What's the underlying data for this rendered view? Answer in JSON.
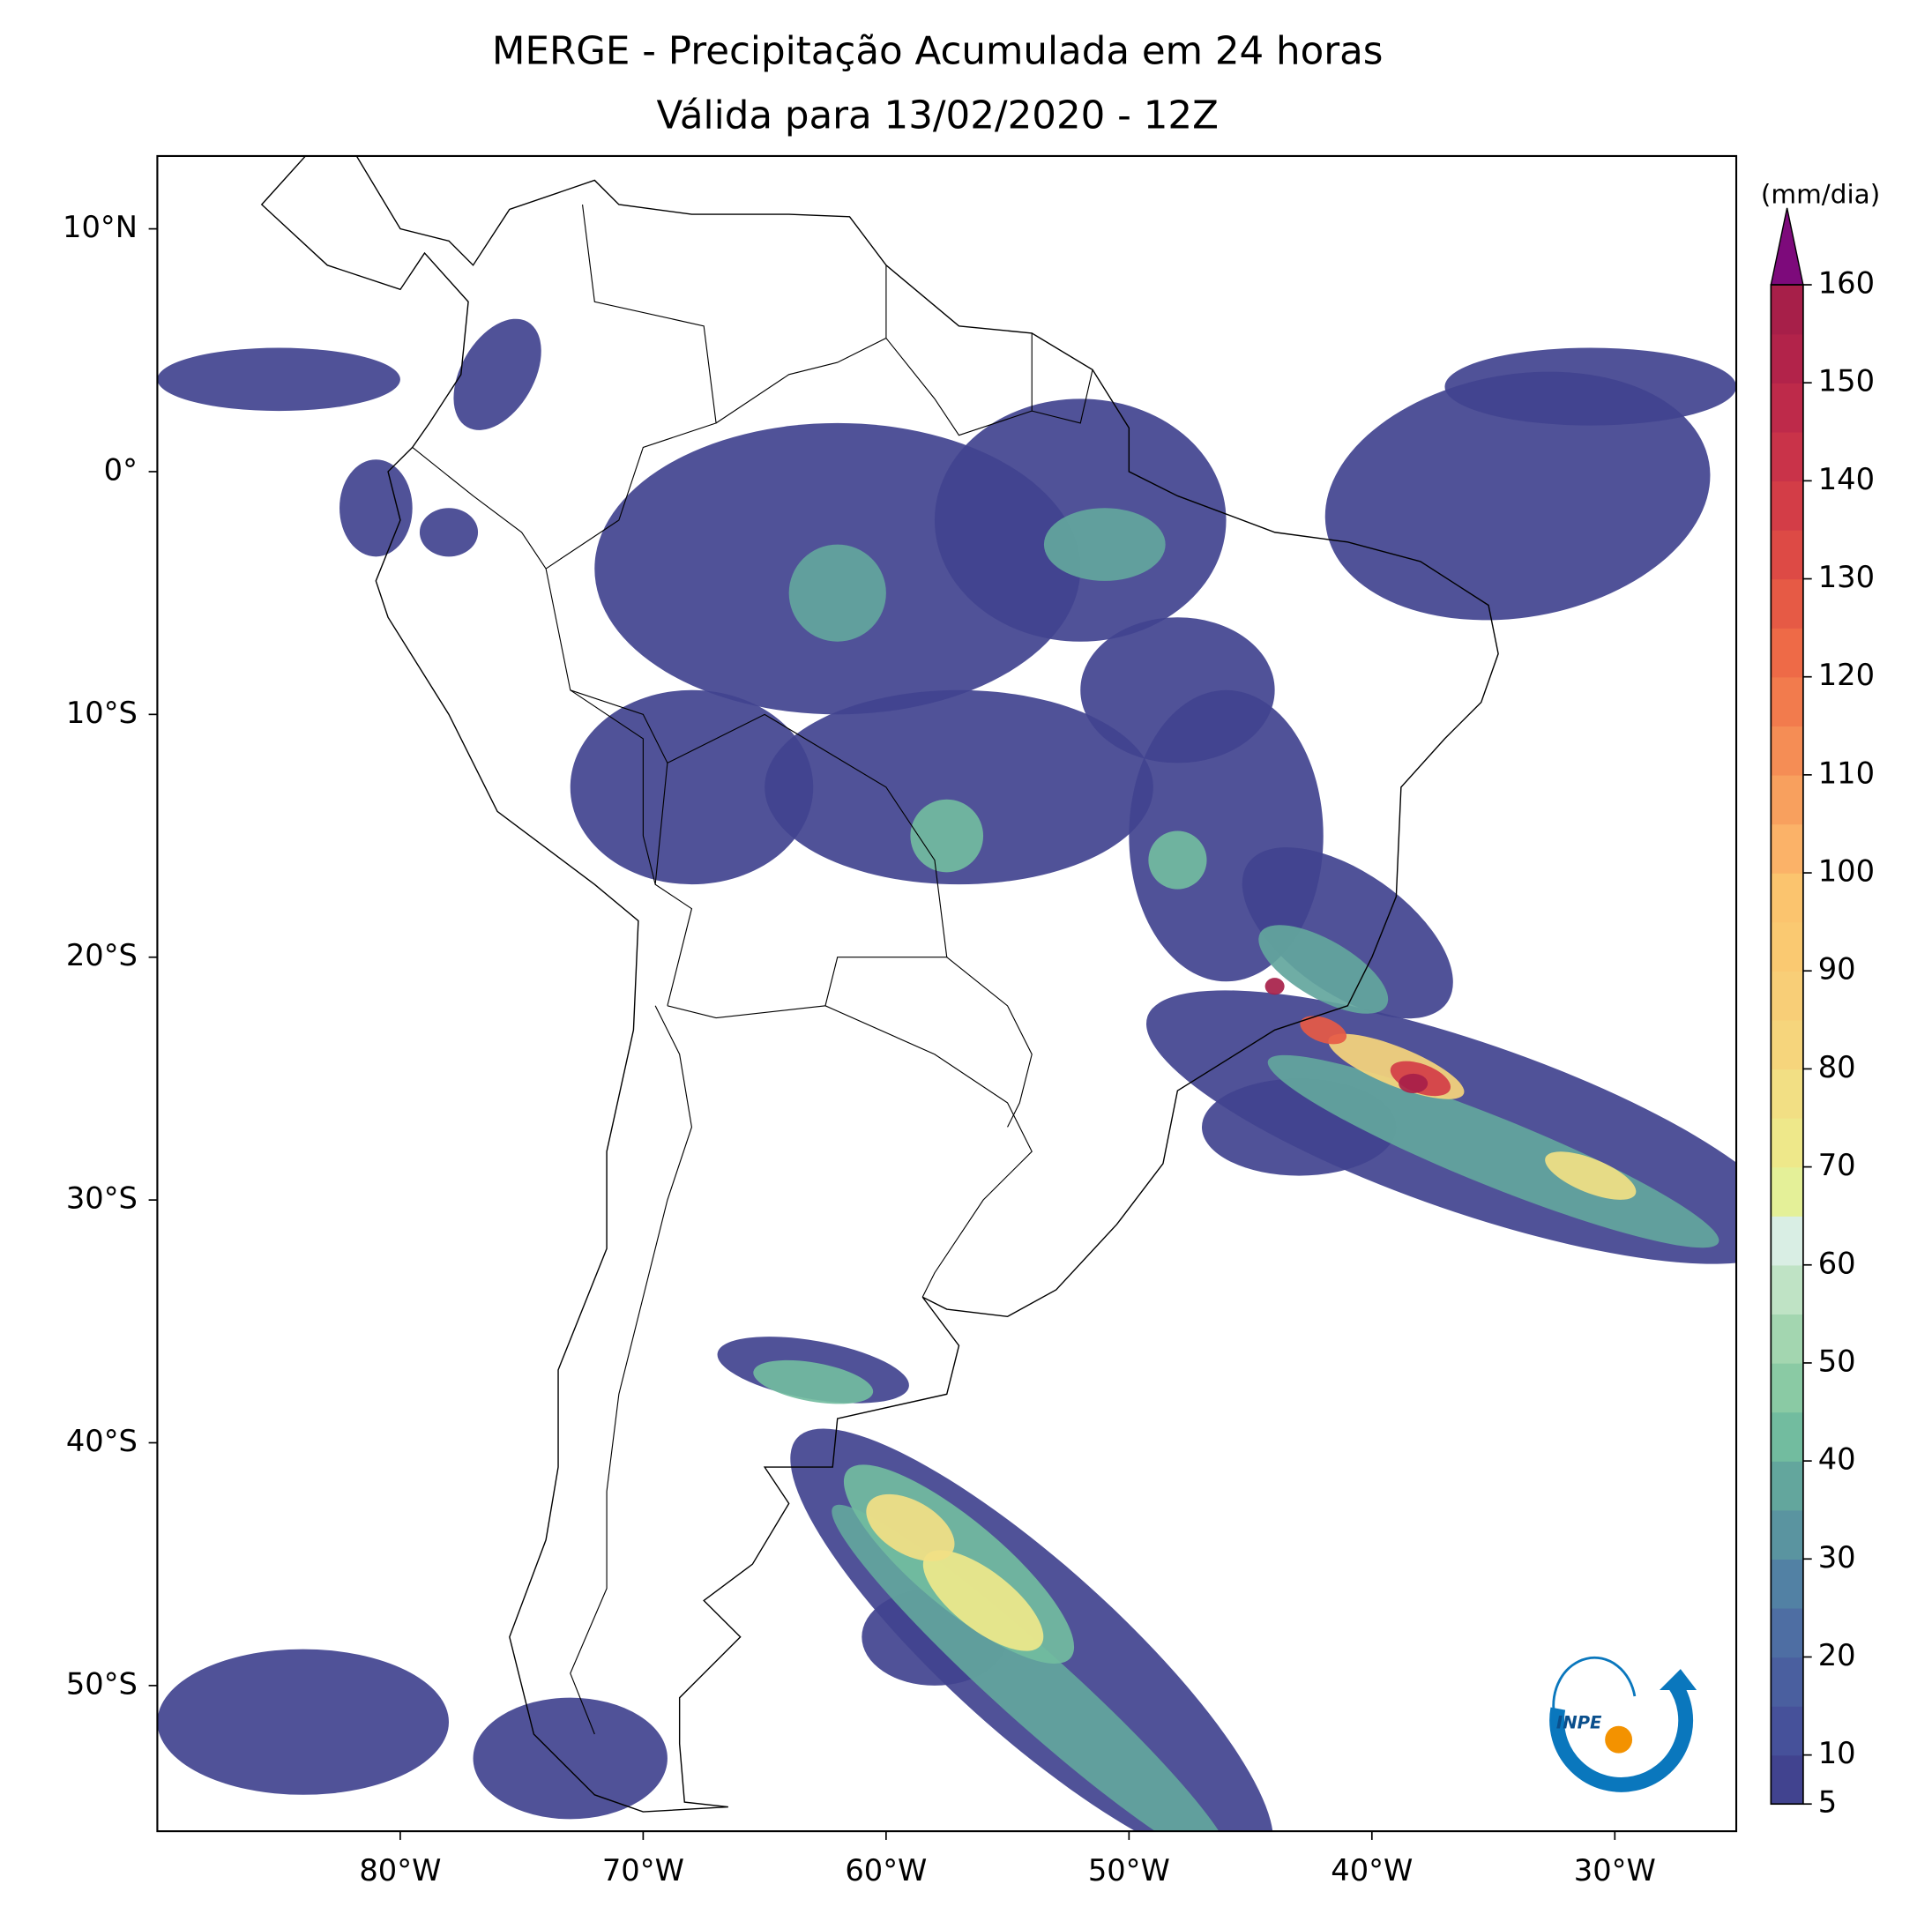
{
  "title": "MERGE - Precipitação Acumulada em 24 horas",
  "subtitle": "Válida para 13/02/2020 - 12Z",
  "map": {
    "xlim": [
      -90,
      -25
    ],
    "ylim": [
      -56,
      13
    ],
    "xticks": [
      {
        "value": -80,
        "label": "80°W"
      },
      {
        "value": -70,
        "label": "70°W"
      },
      {
        "value": -60,
        "label": "60°W"
      },
      {
        "value": -50,
        "label": "50°W"
      },
      {
        "value": -40,
        "label": "40°W"
      },
      {
        "value": -30,
        "label": "30°W"
      }
    ],
    "yticks": [
      {
        "value": 10,
        "label": "10°N"
      },
      {
        "value": 0,
        "label": "0°"
      },
      {
        "value": -10,
        "label": "10°S"
      },
      {
        "value": -20,
        "label": "20°S"
      },
      {
        "value": -30,
        "label": "30°S"
      },
      {
        "value": -40,
        "label": "40°S"
      },
      {
        "value": -50,
        "label": "50°S"
      }
    ]
  },
  "colorbar": {
    "label": "(mm/dia)",
    "levels": [
      5,
      10,
      15,
      20,
      25,
      30,
      35,
      40,
      45,
      50,
      55,
      60,
      65,
      70,
      75,
      80,
      85,
      90,
      95,
      100,
      105,
      110,
      115,
      120,
      125,
      130,
      135,
      140,
      145,
      150,
      155,
      160
    ],
    "ticks": [
      5,
      10,
      20,
      30,
      40,
      50,
      60,
      70,
      80,
      90,
      100,
      110,
      120,
      130,
      140,
      150,
      160
    ],
    "colors": [
      "#41438f",
      "#46519a",
      "#4a5f9f",
      "#4e6ea3",
      "#5281a4",
      "#5a94a0",
      "#63a69d",
      "#72bc9f",
      "#8acaa4",
      "#a3d6b0",
      "#bfe3c5",
      "#d9eee4",
      "#e4f098",
      "#eee88a",
      "#f2df84",
      "#f6d57c",
      "#f8ce77",
      "#fac971",
      "#fbc46e",
      "#fbb268",
      "#f8a05e",
      "#f58d55",
      "#f27b4d",
      "#ee6a47",
      "#e65a45",
      "#dd4a45",
      "#d33d47",
      "#c93349",
      "#be2a4a",
      "#b2234a",
      "#a71f49"
    ],
    "extend_color": "#7d0a7b"
  },
  "logo": "INPE"
}
